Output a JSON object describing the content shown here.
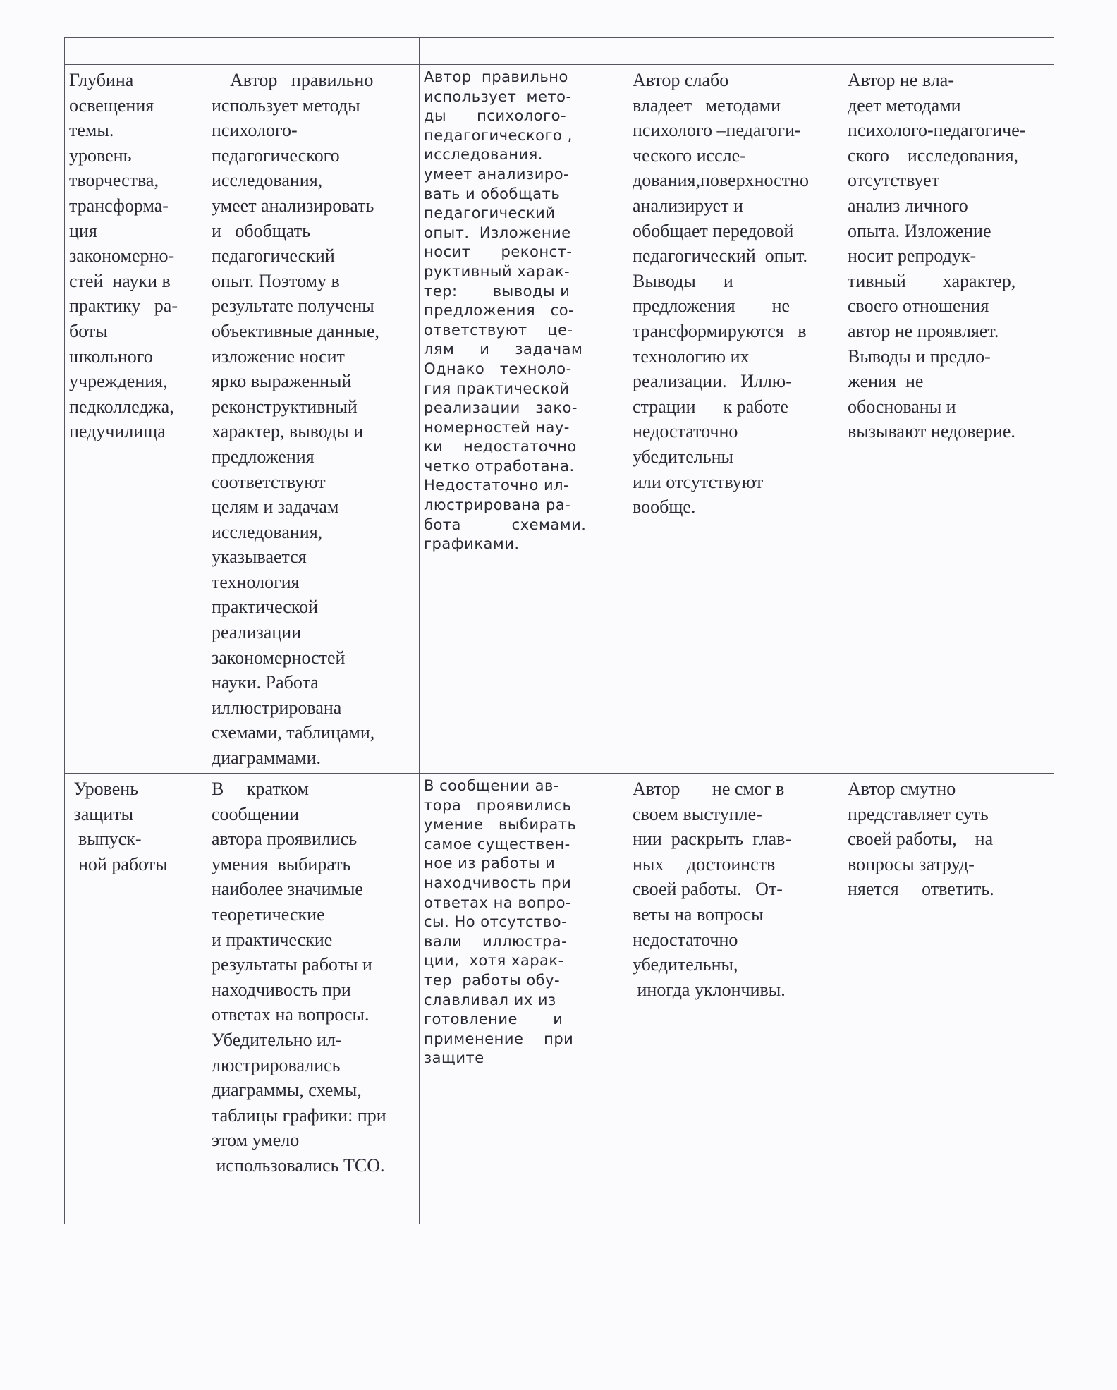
{
  "table": {
    "header": [
      "",
      "",
      "",
      "",
      ""
    ],
    "rows": [
      {
        "cells": [
          [
            "Глубина",
            "освещения",
            "темы.",
            "уровень",
            "творчества,",
            "трансформа-",
            "ция",
            "закономерно-",
            "стей  науки в",
            "практику   ра-",
            "боты",
            "школьного",
            "учреждения,",
            "педколледжа,",
            "педучилища"
          ],
          [
            "    Автор   правильно",
            "использует методы",
            "психолого-",
            "педагогического",
            "исследования,",
            "умеет анализировать",
            "и   обобщать",
            "педагогический",
            "опыт. Поэтому в",
            "результате получены",
            "объективные данные,",
            "изложение носит",
            "ярко выраженный",
            "реконструктивный",
            "характер, выводы и",
            "предложения",
            "соответствуют",
            "целям и задачам",
            "исследования,",
            "указывается",
            "технология",
            "практической",
            "реализации",
            "закономерностей",
            "науки. Работа",
            "иллюстрирована",
            "схемами, таблицами,",
            "диаграммами."
          ],
          [
            "Автор  правильно",
            "использует  мето-",
            "ды      психолого-",
            "педагогического ,",
            "исследования.",
            "умеет анализиро-",
            "вать и обобщать",
            "педагогический",
            "опыт.  Изложение",
            "носит      реконст-",
            "руктивный харак-",
            "тер:       выводы и",
            "предложения   со-",
            "ответствуют    це-",
            "лям     и     задачам",
            "Однако   техноло-",
            "гия практической",
            "реализации   зако-",
            "номерностей нау-",
            "ки    недостаточно",
            "четко отработана.",
            "Недостаточно ил-",
            "люстрирована ра-",
            "бота          схемами.",
            "графиками."
          ],
          [
            "Автор слабо",
            "владеет   методами",
            "психолого –педагоги-",
            "ческого иссле-",
            "дования,поверхностно",
            "анализирует и",
            "обобщает передовой",
            "педагогический  опыт.",
            "Выводы      и",
            "предложения        не",
            "трансформируются   в",
            "технологию их",
            "реализации.   Иллю-",
            "страции      к работе",
            "недостаточно",
            "убедительны",
            "или отсутствуют",
            "вообще."
          ],
          [
            "Автор не вла-",
            "деет методами",
            "психолого-педагогиче-",
            "ского    исследования,",
            "отсутствует",
            "анализ личного",
            "опыта. Изложение",
            "носит репродук-",
            "тивный        характер,",
            "своего отношения",
            "автор не проявляет.",
            "Выводы и предло-",
            "жения  не",
            "обоснованы и",
            "вызывают недоверие."
          ]
        ]
      },
      {
        "cells": [
          [
            " Уровень",
            " защиты",
            "  выпуск-",
            "  ной работы"
          ],
          [
            "В     кратком",
            "сообщении",
            "автора проявились",
            "умения  выбирать",
            "наиболее значимые",
            "теоретические",
            "и практические",
            "результаты работы и",
            "находчивость при",
            "ответах на вопросы.",
            "Убедительно ил-",
            "люстрировались",
            "диаграммы, схемы,",
            "таблицы графики: при",
            "этом умело",
            " использовались ТСО."
          ],
          [
            "В сообщении ав-",
            "тора   проявились",
            "умение   выбирать",
            "самое существен-",
            "ное из работы и",
            "находчивость при",
            "ответах на вопро-",
            "сы. Но отсутство-",
            "вали    иллюстра-",
            "ции,  хотя харак-",
            "тер  работы обу-",
            "славливал их из",
            "готовление       и",
            "применение    при",
            "защите"
          ],
          [
            "Автор       не смог в",
            "своем выступле-",
            "нии  раскрыть  глав-",
            "ных     достоинств",
            "своей работы.   От-",
            "веты на вопросы",
            "недостаточно",
            "убедительны,",
            " иногда уклончивы."
          ],
          [
            "Автор смутно",
            "представляет суть",
            "своей работы,    на",
            "вопросы затруд-",
            "няется     ответить."
          ]
        ]
      }
    ]
  }
}
